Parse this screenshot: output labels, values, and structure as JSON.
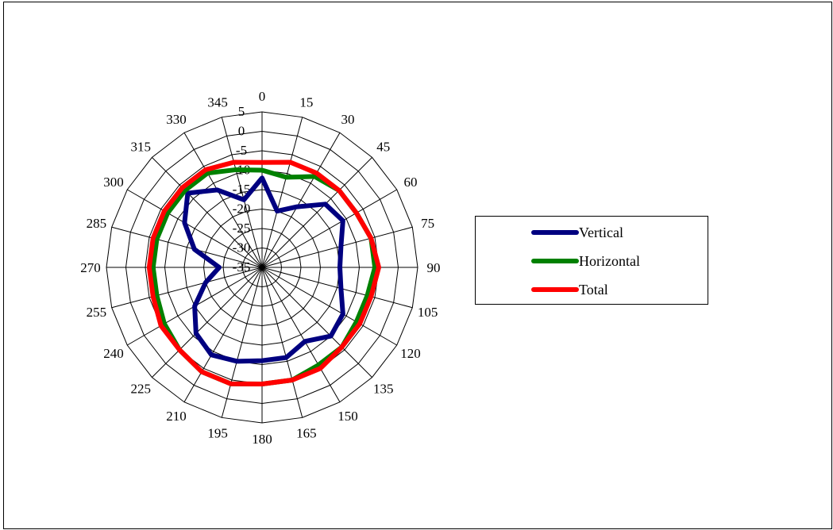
{
  "chart_data": {
    "type": "radar",
    "title": "",
    "angles": [
      0,
      15,
      30,
      45,
      60,
      75,
      90,
      105,
      120,
      135,
      150,
      165,
      180,
      195,
      210,
      225,
      240,
      255,
      270,
      285,
      300,
      315,
      330,
      345
    ],
    "radial_ticks": [
      5,
      0,
      -5,
      -10,
      -15,
      -20,
      -25,
      -30,
      -35
    ],
    "rlim": [
      -35,
      5
    ],
    "series": [
      {
        "name": "Vertical",
        "color": "#000080",
        "values": [
          -12,
          -20,
          -17,
          -12,
          -11,
          -14,
          -15,
          -14,
          -11,
          -10,
          -13,
          -11,
          -11,
          -10,
          -9,
          -11,
          -15,
          -20,
          -24,
          -17,
          -12,
          -8,
          -12,
          -17
        ]
      },
      {
        "name": "Horizontal",
        "color": "#008000",
        "values": [
          -10,
          -11,
          -8,
          -7,
          -7,
          -6,
          -6,
          -7,
          -7,
          -6,
          -6,
          -5,
          -5,
          -4,
          -4,
          -5,
          -6,
          -7,
          -7,
          -7,
          -7,
          -7,
          -7,
          -9
        ]
      },
      {
        "name": "Total",
        "color": "#ff0000",
        "values": [
          -8,
          -7,
          -7,
          -7,
          -7,
          -6,
          -5,
          -6,
          -6,
          -6,
          -5,
          -5,
          -5,
          -4,
          -4,
          -5,
          -5,
          -6,
          -6,
          -6,
          -6,
          -6,
          -6,
          -7
        ]
      }
    ],
    "legend": "right",
    "grid": true
  },
  "legend_items": [
    {
      "label": "Vertical",
      "color": "#000080"
    },
    {
      "label": "Horizontal",
      "color": "#008000"
    },
    {
      "label": "Total",
      "color": "#ff0000"
    }
  ]
}
